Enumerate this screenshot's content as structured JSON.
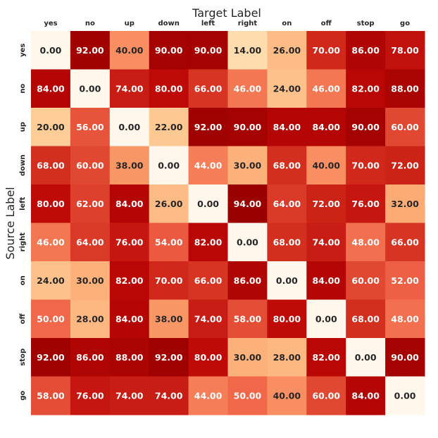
{
  "chart_data": {
    "type": "heatmap",
    "title": "Target Label",
    "xlabel": "Target Label",
    "ylabel": "Source Label",
    "x_categories": [
      "yes",
      "no",
      "up",
      "down",
      "left",
      "right",
      "on",
      "off",
      "stop",
      "go"
    ],
    "y_categories": [
      "yes",
      "no",
      "up",
      "down",
      "left",
      "right",
      "on",
      "off",
      "stop",
      "go"
    ],
    "values": [
      [
        0,
        92,
        40,
        90,
        90,
        14,
        26,
        70,
        86,
        78
      ],
      [
        84,
        0,
        74,
        80,
        66,
        46,
        24,
        46,
        82,
        88
      ],
      [
        20,
        56,
        0,
        22,
        92,
        90,
        84,
        84,
        90,
        60
      ],
      [
        68,
        60,
        38,
        0,
        44,
        30,
        68,
        40,
        70,
        72
      ],
      [
        80,
        62,
        84,
        26,
        0,
        94,
        64,
        72,
        76,
        32
      ],
      [
        46,
        64,
        76,
        54,
        82,
        0,
        68,
        74,
        48,
        66
      ],
      [
        24,
        30,
        82,
        70,
        66,
        86,
        0,
        84,
        60,
        52
      ],
      [
        50,
        28,
        84,
        38,
        74,
        58,
        80,
        0,
        68,
        48
      ],
      [
        92,
        86,
        88,
        92,
        80,
        30,
        28,
        82,
        0,
        90
      ],
      [
        58,
        76,
        74,
        74,
        44,
        50,
        40,
        60,
        84,
        0
      ]
    ],
    "value_format": "0.00",
    "x_axis_position": "top",
    "colormap": "OrRd",
    "vmin": 0,
    "vmax": 94,
    "colorbar": false,
    "grid": false
  }
}
